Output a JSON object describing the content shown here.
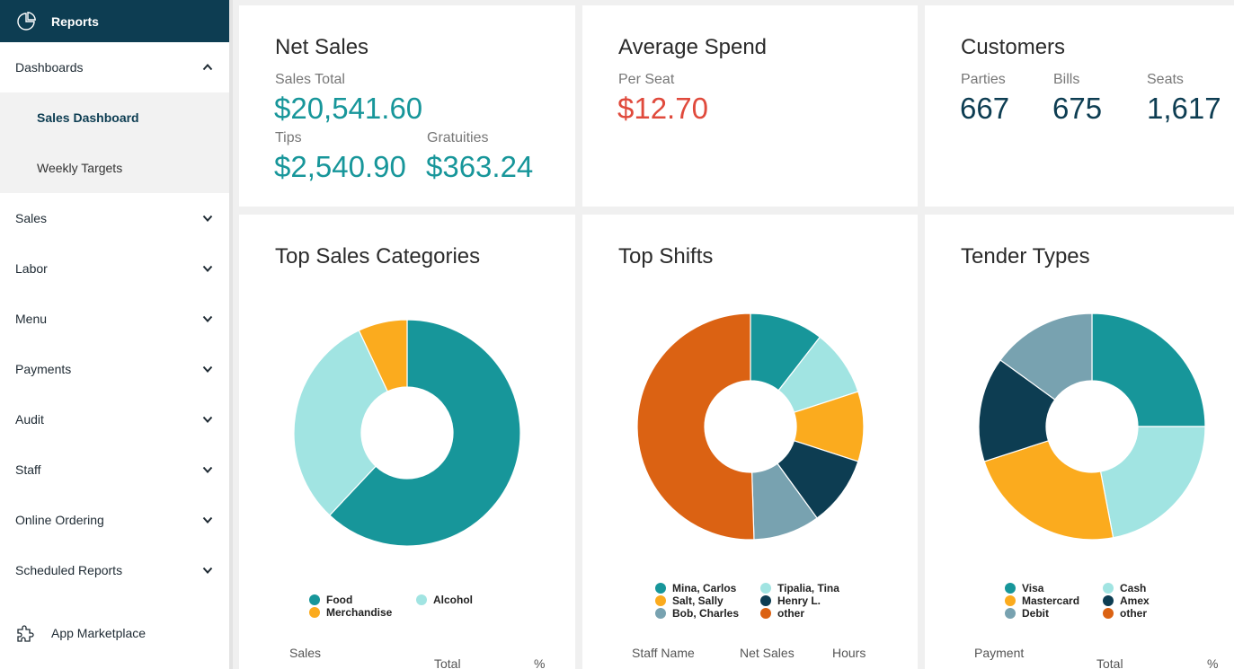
{
  "sidebar": {
    "header": {
      "title": "Reports",
      "icon": "pie-chart-icon"
    },
    "dashboards": {
      "label": "Dashboards",
      "items": [
        {
          "label": "Sales Dashboard",
          "active": true
        },
        {
          "label": "Weekly Targets",
          "active": false
        }
      ]
    },
    "sections": [
      {
        "label": "Sales"
      },
      {
        "label": "Labor"
      },
      {
        "label": "Menu"
      },
      {
        "label": "Payments"
      },
      {
        "label": "Audit"
      },
      {
        "label": "Staff"
      },
      {
        "label": "Online Ordering"
      },
      {
        "label": "Scheduled Reports"
      }
    ],
    "marketplace": {
      "label": "App Marketplace",
      "icon": "puzzle-icon"
    }
  },
  "net_sales": {
    "title": "Net Sales",
    "sales_total_label": "Sales Total",
    "sales_total": "$20,541.60",
    "tips_label": "Tips",
    "tips": "$2,540.90",
    "gratuities_label": "Gratuities",
    "gratuities": "$363.24"
  },
  "average_spend": {
    "title": "Average Spend",
    "per_seat_label": "Per Seat",
    "per_seat": "$12.70"
  },
  "customers": {
    "title": "Customers",
    "parties_label": "Parties",
    "parties": "667",
    "bills_label": "Bills",
    "bills": "675",
    "seats_label": "Seats",
    "seats": "1,617"
  },
  "colors": {
    "teal": "#17969a",
    "light_teal": "#a1e4e2",
    "orange": "#fbab1e",
    "navy": "#0d3d52",
    "slate": "#78a2b0",
    "rust": "#db6213",
    "red": "#e04a3c"
  },
  "chart_data": [
    {
      "type": "pie",
      "donut": true,
      "title": "Top Sales Categories",
      "slices": [
        {
          "label": "Food",
          "value": 62,
          "color": "#17969a"
        },
        {
          "label": "Alcohol",
          "value": 31,
          "color": "#a1e4e2"
        },
        {
          "label": "Merchandise",
          "value": 7,
          "color": "#fbab1e"
        }
      ],
      "legend_order": [
        "Food",
        "Alcohol",
        "Merchandise"
      ],
      "legend_placement": "bottom",
      "table_headers": [
        "Sales",
        "Total",
        "%"
      ]
    },
    {
      "type": "pie",
      "donut": true,
      "title": "Top Shifts",
      "slices": [
        {
          "label": "Mina, Carlos",
          "value": 10.5,
          "color": "#17969a"
        },
        {
          "label": "Tipalia, Tina",
          "value": 9.5,
          "color": "#a1e4e2"
        },
        {
          "label": "Salt, Sally",
          "value": 10,
          "color": "#fbab1e"
        },
        {
          "label": "Henry L.",
          "value": 10,
          "color": "#0d3d52"
        },
        {
          "label": "Bob, Charles",
          "value": 9.5,
          "color": "#78a2b0"
        },
        {
          "label": "other",
          "value": 50.5,
          "color": "#db6213"
        }
      ],
      "legend_order": [
        "Mina, Carlos",
        "Tipalia, Tina",
        "Salt, Sally",
        "Henry L.",
        "Bob, Charles",
        "other"
      ],
      "legend_placement": "bottom",
      "table_headers": [
        "Staff Name",
        "Net Sales",
        "Hours"
      ]
    },
    {
      "type": "pie",
      "donut": true,
      "title": "Tender Types",
      "slices": [
        {
          "label": "Visa",
          "value": 25,
          "color": "#17969a"
        },
        {
          "label": "Cash",
          "value": 22,
          "color": "#a1e4e2"
        },
        {
          "label": "Mastercard",
          "value": 23,
          "color": "#fbab1e"
        },
        {
          "label": "Amex",
          "value": 15,
          "color": "#0d3d52"
        },
        {
          "label": "Debit",
          "value": 15,
          "color": "#78a2b0"
        },
        {
          "label": "other",
          "value": 0,
          "color": "#db6213"
        }
      ],
      "legend_order": [
        "Visa",
        "Cash",
        "Mastercard",
        "Amex",
        "Debit",
        "other"
      ],
      "legend_placement": "bottom",
      "table_headers": [
        "Payment",
        "Total",
        "%"
      ]
    }
  ]
}
